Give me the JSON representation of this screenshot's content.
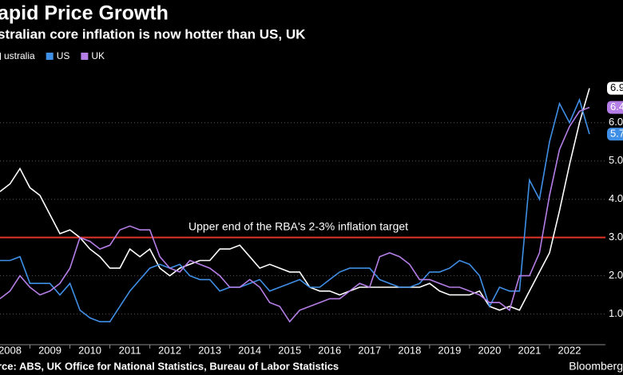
{
  "chart_data": {
    "type": "line",
    "title": "apid Price Growth",
    "subtitle": "stralian core inflation is now hotter than US, UK",
    "annotation": "Upper end of the RBA's 2-3% inflation target",
    "target_line": 3,
    "target_color": "#e3342a",
    "source": "rce: ABS, UK Office for National Statistics, Bureau of Labor Statistics",
    "brand": "Bloomberg",
    "x": [
      2008.25,
      2008.5,
      2008.75,
      2009,
      2009.25,
      2009.5,
      2009.75,
      2010,
      2010.25,
      2010.5,
      2010.75,
      2011,
      2011.25,
      2011.5,
      2011.75,
      2012,
      2012.25,
      2012.5,
      2012.75,
      2013,
      2013.25,
      2013.5,
      2013.75,
      2014,
      2014.25,
      2014.5,
      2014.75,
      2015,
      2015.25,
      2015.5,
      2015.75,
      2016,
      2016.25,
      2016.5,
      2016.75,
      2017,
      2017.25,
      2017.5,
      2017.75,
      2018,
      2018.25,
      2018.5,
      2018.75,
      2019,
      2019.25,
      2019.5,
      2019.75,
      2020,
      2020.25,
      2020.5,
      2020.75,
      2021,
      2021.25,
      2021.5,
      2021.75,
      2022,
      2022.25,
      2022.5,
      2022.75,
      2023
    ],
    "series": [
      {
        "name": "ustralia",
        "color": "#ffffff",
        "end_label": "6.9",
        "values": [
          4.2,
          4.4,
          4.8,
          4.3,
          4.1,
          3.6,
          3.1,
          3.2,
          3.0,
          2.7,
          2.5,
          2.2,
          2.2,
          2.7,
          2.5,
          2.7,
          2.2,
          2.0,
          2.2,
          2.3,
          2.4,
          2.4,
          2.7,
          2.7,
          2.8,
          2.5,
          2.2,
          2.3,
          2.2,
          2.1,
          2.1,
          1.7,
          1.6,
          1.6,
          1.5,
          1.6,
          1.7,
          1.7,
          1.7,
          1.7,
          1.7,
          1.7,
          1.7,
          1.8,
          1.6,
          1.5,
          1.5,
          1.5,
          1.6,
          1.2,
          1.1,
          1.2,
          1.1,
          1.6,
          2.1,
          2.6,
          3.7,
          4.9,
          6.0,
          6.9
        ]
      },
      {
        "name": "US",
        "color": "#3f8fe6",
        "end_label": "5.7",
        "values": [
          2.4,
          2.4,
          2.5,
          1.8,
          1.8,
          1.8,
          1.5,
          1.8,
          1.1,
          0.9,
          0.8,
          0.8,
          1.2,
          1.6,
          1.9,
          2.2,
          2.3,
          2.2,
          2.3,
          2.0,
          1.9,
          1.9,
          1.6,
          1.7,
          1.7,
          1.8,
          1.9,
          1.6,
          1.7,
          1.8,
          1.9,
          1.7,
          1.7,
          1.9,
          2.1,
          2.2,
          2.2,
          2.2,
          1.9,
          1.8,
          1.7,
          1.7,
          1.8,
          2.1,
          2.1,
          2.2,
          2.4,
          2.3,
          2.0,
          1.2,
          1.7,
          1.6,
          1.6,
          4.5,
          4.0,
          5.5,
          6.5,
          6.0,
          6.6,
          5.7
        ]
      },
      {
        "name": "UK",
        "color": "#b57ee6",
        "end_label": "6.4",
        "values": [
          1.4,
          1.6,
          2.0,
          1.7,
          1.5,
          1.6,
          1.8,
          2.2,
          3.0,
          2.9,
          2.7,
          2.8,
          3.2,
          3.3,
          3.2,
          3.2,
          2.5,
          2.2,
          2.1,
          2.4,
          2.3,
          2.2,
          2.0,
          1.7,
          1.7,
          1.9,
          1.7,
          1.3,
          1.2,
          0.8,
          1.1,
          1.2,
          1.3,
          1.4,
          1.4,
          1.6,
          1.8,
          1.7,
          2.5,
          2.6,
          2.5,
          2.3,
          1.9,
          1.9,
          1.8,
          1.7,
          1.7,
          1.6,
          1.5,
          1.3,
          1.3,
          1.1,
          2.0,
          2.0,
          2.6,
          4.1,
          5.3,
          5.9,
          6.3,
          6.4
        ]
      }
    ],
    "xlim": [
      2008.25,
      2023.4
    ],
    "xticks": [
      {
        "value": 2008.5,
        "label": "2008"
      },
      {
        "value": 2009.5,
        "label": "2009"
      },
      {
        "value": 2010.5,
        "label": "2010"
      },
      {
        "value": 2011.5,
        "label": "2011"
      },
      {
        "value": 2012.5,
        "label": "2012"
      },
      {
        "value": 2013.5,
        "label": "2013"
      },
      {
        "value": 2014.5,
        "label": "2014"
      },
      {
        "value": 2015.5,
        "label": "2015"
      },
      {
        "value": 2016.5,
        "label": "2016"
      },
      {
        "value": 2017.5,
        "label": "2017"
      },
      {
        "value": 2018.5,
        "label": "2018"
      },
      {
        "value": 2019.5,
        "label": "2019"
      },
      {
        "value": 2020.5,
        "label": "2020"
      },
      {
        "value": 2021.5,
        "label": "2021"
      },
      {
        "value": 2022.5,
        "label": "2022"
      }
    ],
    "ylim": [
      0.2,
      7.6
    ],
    "yticks": [
      {
        "value": 1,
        "label": "1.0"
      },
      {
        "value": 2,
        "label": "2.0"
      },
      {
        "value": 3,
        "label": "3.0"
      },
      {
        "value": 4,
        "label": "4.0"
      },
      {
        "value": 5,
        "label": "5.0"
      },
      {
        "value": 6,
        "label": "6.0"
      }
    ],
    "grid": true
  }
}
